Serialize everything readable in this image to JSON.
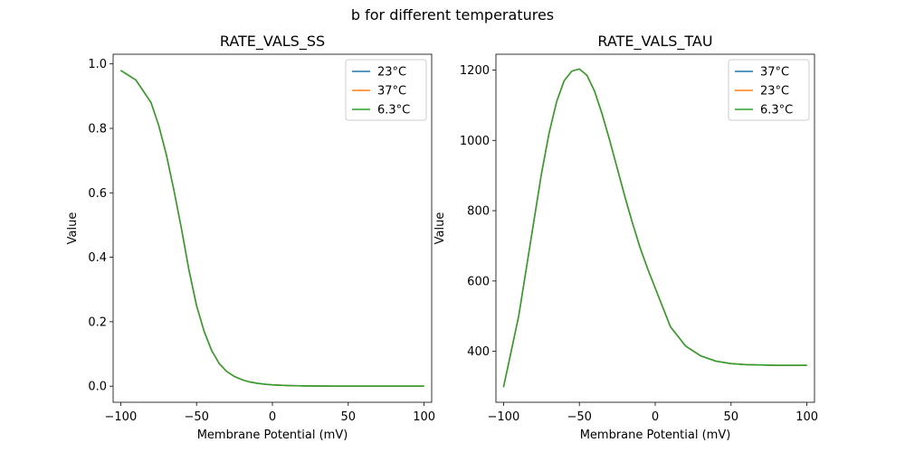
{
  "figure": {
    "suptitle": "b for different temperatures"
  },
  "chart_data": [
    {
      "type": "line",
      "title": "RATE_VALS_SS",
      "xlabel": "Membrane Potential (mV)",
      "ylabel": "Value",
      "xlim": [
        -105,
        105
      ],
      "ylim": [
        -0.05,
        1.03
      ],
      "xticks": [
        -100,
        -50,
        0,
        50,
        100
      ],
      "yticks": [
        0.0,
        0.2,
        0.4,
        0.6,
        0.8,
        1.0
      ],
      "ytick_labels": [
        "0.0",
        "0.2",
        "0.4",
        "0.6",
        "0.8",
        "1.0"
      ],
      "legend_position": "top-right",
      "x": [
        -100,
        -90,
        -80,
        -75,
        -70,
        -65,
        -60,
        -55,
        -50,
        -45,
        -40,
        -35,
        -30,
        -25,
        -20,
        -15,
        -10,
        -5,
        0,
        10,
        20,
        30,
        40,
        50,
        60,
        70,
        80,
        90,
        100
      ],
      "series": [
        {
          "name": "23°C",
          "color": "#1f77b4",
          "values": [
            0.98,
            0.95,
            0.88,
            0.81,
            0.72,
            0.61,
            0.49,
            0.36,
            0.25,
            0.17,
            0.11,
            0.07,
            0.045,
            0.03,
            0.02,
            0.013,
            0.009,
            0.006,
            0.004,
            0.002,
            0.001,
            0.0005,
            0.0003,
            0.0002,
            0.0001,
            0.0001,
            0.0,
            0.0,
            0.0
          ]
        },
        {
          "name": "37°C",
          "color": "#ff7f0e",
          "values": [
            0.98,
            0.95,
            0.88,
            0.81,
            0.72,
            0.61,
            0.49,
            0.36,
            0.25,
            0.17,
            0.11,
            0.07,
            0.045,
            0.03,
            0.02,
            0.013,
            0.009,
            0.006,
            0.004,
            0.002,
            0.001,
            0.0005,
            0.0003,
            0.0002,
            0.0001,
            0.0001,
            0.0,
            0.0,
            0.0
          ]
        },
        {
          "name": "6.3°C",
          "color": "#2ca02c",
          "values": [
            0.98,
            0.95,
            0.88,
            0.81,
            0.72,
            0.61,
            0.49,
            0.36,
            0.25,
            0.17,
            0.11,
            0.07,
            0.045,
            0.03,
            0.02,
            0.013,
            0.009,
            0.006,
            0.004,
            0.002,
            0.001,
            0.0005,
            0.0003,
            0.0002,
            0.0001,
            0.0001,
            0.0,
            0.0,
            0.0
          ]
        }
      ]
    },
    {
      "type": "line",
      "title": "RATE_VALS_TAU",
      "xlabel": "Membrane Potential (mV)",
      "ylabel": "Value",
      "xlim": [
        -105,
        105
      ],
      "ylim": [
        255,
        1245
      ],
      "xticks": [
        -100,
        -50,
        0,
        50,
        100
      ],
      "yticks": [
        400,
        600,
        800,
        1000,
        1200
      ],
      "ytick_labels": [
        "400",
        "600",
        "800",
        "1000",
        "1200"
      ],
      "legend_position": "top-right",
      "x": [
        -100,
        -90,
        -80,
        -75,
        -70,
        -65,
        -60,
        -55,
        -50,
        -45,
        -40,
        -35,
        -30,
        -25,
        -20,
        -15,
        -10,
        -5,
        0,
        10,
        20,
        30,
        40,
        50,
        60,
        70,
        80,
        90,
        100
      ],
      "series": [
        {
          "name": "37°C",
          "color": "#1f77b4",
          "values": [
            298,
            500,
            770,
            905,
            1020,
            1110,
            1170,
            1197,
            1203,
            1185,
            1140,
            1075,
            1000,
            920,
            840,
            765,
            695,
            635,
            580,
            470,
            415,
            387,
            372,
            365,
            362,
            361,
            360,
            360,
            360
          ]
        },
        {
          "name": "23°C",
          "color": "#ff7f0e",
          "values": [
            298,
            500,
            770,
            905,
            1020,
            1110,
            1170,
            1197,
            1203,
            1185,
            1140,
            1075,
            1000,
            920,
            840,
            765,
            695,
            635,
            580,
            470,
            415,
            387,
            372,
            365,
            362,
            361,
            360,
            360,
            360
          ]
        },
        {
          "name": "6.3°C",
          "color": "#2ca02c",
          "values": [
            298,
            500,
            770,
            905,
            1020,
            1110,
            1170,
            1197,
            1203,
            1185,
            1140,
            1075,
            1000,
            920,
            840,
            765,
            695,
            635,
            580,
            470,
            415,
            387,
            372,
            365,
            362,
            361,
            360,
            360,
            360
          ]
        }
      ]
    }
  ]
}
